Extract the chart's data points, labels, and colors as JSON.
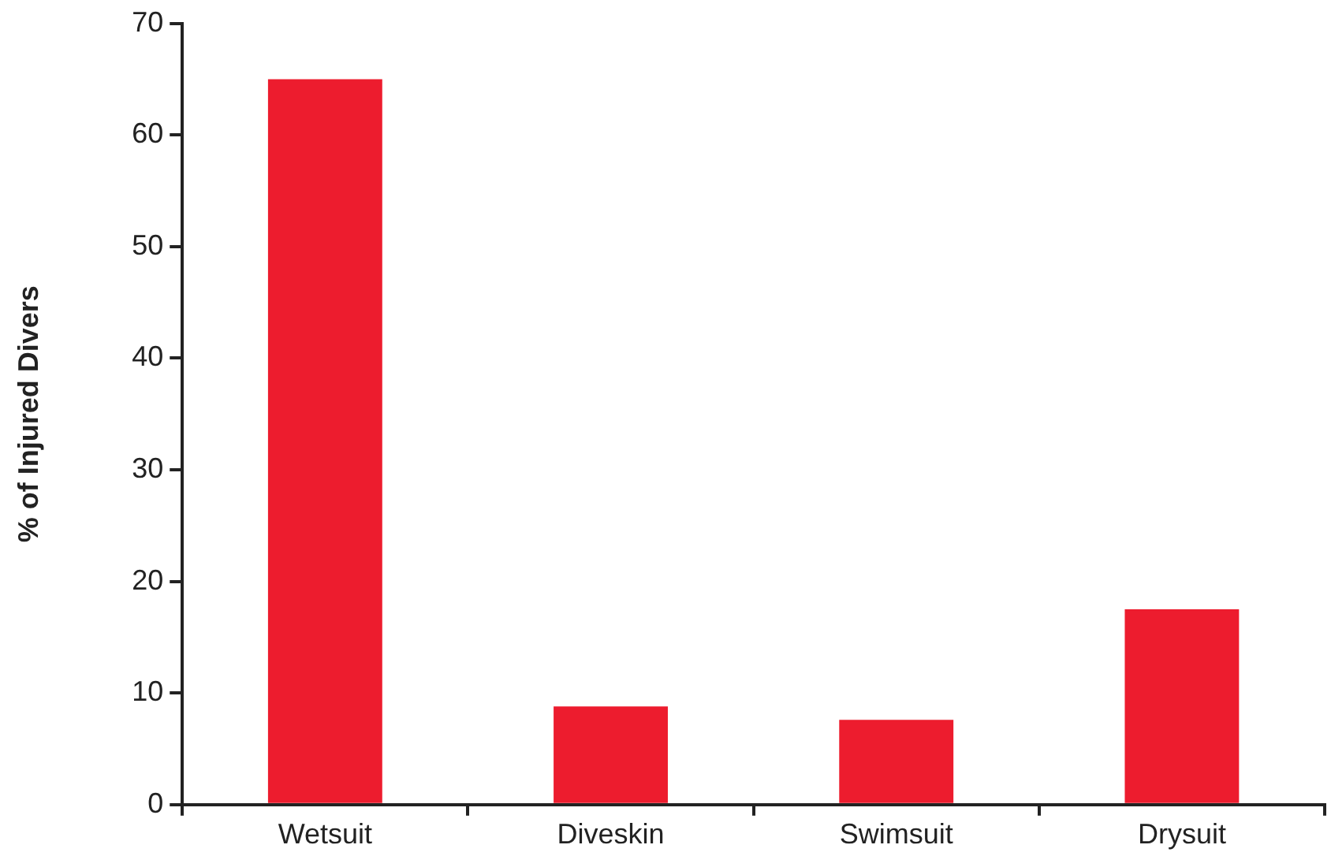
{
  "chart_data": {
    "type": "bar",
    "ylabel": "% of Injured Divers",
    "categories": [
      "Wetsuit",
      "Diveskin",
      "Swimsuit",
      "Drysuit"
    ],
    "values": [
      65,
      8.8,
      7.6,
      17.5
    ],
    "color": "#ed1c2e",
    "ylim": [
      0,
      70
    ],
    "yticks": [
      0,
      10,
      20,
      30,
      40,
      50,
      60,
      70
    ],
    "grid": false,
    "legend": false
  }
}
